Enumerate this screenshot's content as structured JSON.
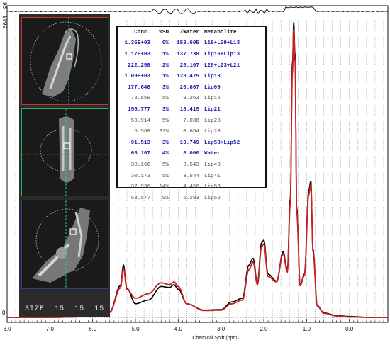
{
  "chart_data": {
    "type": "line",
    "xlabel": "Chemical Shift (ppm)",
    "xlim": [
      8.0,
      -0.9
    ],
    "x_reversed": true,
    "x_ticks": [
      "8.0",
      "7.0",
      "6.0",
      "5.0",
      "4.0",
      "3.0",
      "2.0",
      "1.0",
      "0.0"
    ],
    "y_tick_label": "6648",
    "y_zero_label": "0",
    "residual_label": "96",
    "ylim": [
      0,
      6648
    ],
    "series": [
      {
        "color": "#000000",
        "x": [
          8.0,
          7.0,
          6.0,
          5.6,
          5.35,
          5.28,
          5.2,
          5.0,
          4.7,
          4.4,
          4.2,
          4.1,
          4.0,
          3.8,
          3.4,
          3.0,
          2.75,
          2.5,
          2.35,
          2.25,
          2.15,
          2.05,
          2.0,
          1.9,
          1.7,
          1.55,
          1.45,
          1.38,
          1.33,
          1.3,
          1.27,
          1.23,
          1.15,
          1.05,
          0.95,
          0.9,
          0.85,
          0.75,
          0.6,
          0.3,
          0.0,
          -0.5,
          -0.9
        ],
        "y": [
          0,
          0,
          20,
          120,
          700,
          1150,
          640,
          300,
          380,
          680,
          660,
          720,
          620,
          300,
          160,
          170,
          340,
          420,
          1150,
          1300,
          760,
          1650,
          1700,
          950,
          800,
          1450,
          1050,
          2600,
          5600,
          6500,
          5800,
          2400,
          720,
          950,
          2800,
          3000,
          1500,
          260,
          100,
          40,
          20,
          0,
          0
        ]
      },
      {
        "color": "#cc1f1f",
        "x": [
          8.0,
          7.0,
          6.0,
          5.6,
          5.35,
          5.28,
          5.2,
          5.0,
          4.7,
          4.4,
          4.2,
          4.1,
          4.0,
          3.8,
          3.4,
          3.0,
          2.75,
          2.5,
          2.35,
          2.25,
          2.15,
          2.05,
          2.0,
          1.9,
          1.7,
          1.55,
          1.45,
          1.38,
          1.33,
          1.3,
          1.27,
          1.23,
          1.15,
          1.05,
          0.95,
          0.9,
          0.85,
          0.75,
          0.6,
          0.3,
          0.0,
          -0.5,
          -0.9
        ],
        "y": [
          0,
          0,
          20,
          110,
          650,
          1080,
          620,
          420,
          520,
          760,
          720,
          780,
          680,
          300,
          150,
          160,
          300,
          380,
          1050,
          1220,
          720,
          1560,
          1620,
          900,
          780,
          1400,
          1000,
          2500,
          5400,
          6350,
          5650,
          2300,
          700,
          920,
          2700,
          2920,
          1450,
          250,
          90,
          30,
          10,
          0,
          0
        ]
      }
    ],
    "grid": true
  },
  "localizer": {
    "size_label": "SIZE",
    "size_values": [
      "15",
      "15",
      "15"
    ]
  },
  "results": {
    "header": [
      "Conc.",
      "%SD",
      "/Water",
      "Metabolite"
    ],
    "rows": [
      {
        "conc": "1.35E+03",
        "sd": "0%",
        "water": "158.605",
        "name": "L16+L09+L13",
        "sel": true
      },
      {
        "conc": "1.17E+03",
        "sd": "1%",
        "water": "137.738",
        "name": "Lip16+Lip13",
        "sel": true
      },
      {
        "conc": "222.259",
        "sd": "2%",
        "water": "26.107",
        "name": "L28+L23+L21",
        "sel": true
      },
      {
        "conc": "1.09E+03",
        "sd": "1%",
        "water": "128.475",
        "name": "Lip13",
        "sel": true
      },
      {
        "conc": "177.646",
        "sd": "3%",
        "water": "20.867",
        "name": "Lip09",
        "sel": true
      },
      {
        "conc": "78.859",
        "sd": "5%",
        "water": "9.263",
        "name": "Lip16",
        "sel": false
      },
      {
        "conc": "156.777",
        "sd": "3%",
        "water": "18.415",
        "name": "Lip21",
        "sel": true
      },
      {
        "conc": "59.914",
        "sd": "5%",
        "water": "7.038",
        "name": "Lip23",
        "sel": false
      },
      {
        "conc": "5.568",
        "sd": "37%",
        "water": "0.654",
        "name": "Lip28",
        "sel": false
      },
      {
        "conc": "91.513",
        "sd": "3%",
        "water": "10.749",
        "name": "Lip53+Lip52",
        "sel": true
      },
      {
        "conc": "68.107",
        "sd": "4%",
        "water": "8.000",
        "name": "Water",
        "sel": true
      },
      {
        "conc": "30.166",
        "sd": "5%",
        "water": "3.543",
        "name": "Lip43",
        "sel": false
      },
      {
        "conc": "30.173",
        "sd": "5%",
        "water": "3.544",
        "name": "Lip41",
        "sel": false
      },
      {
        "conc": "37.936",
        "sd": "14%",
        "water": "4.456",
        "name": "Lip53",
        "sel": false
      },
      {
        "conc": "53.577",
        "sd": "9%",
        "water": "6.293",
        "name": "Lip52",
        "sel": false
      }
    ]
  }
}
